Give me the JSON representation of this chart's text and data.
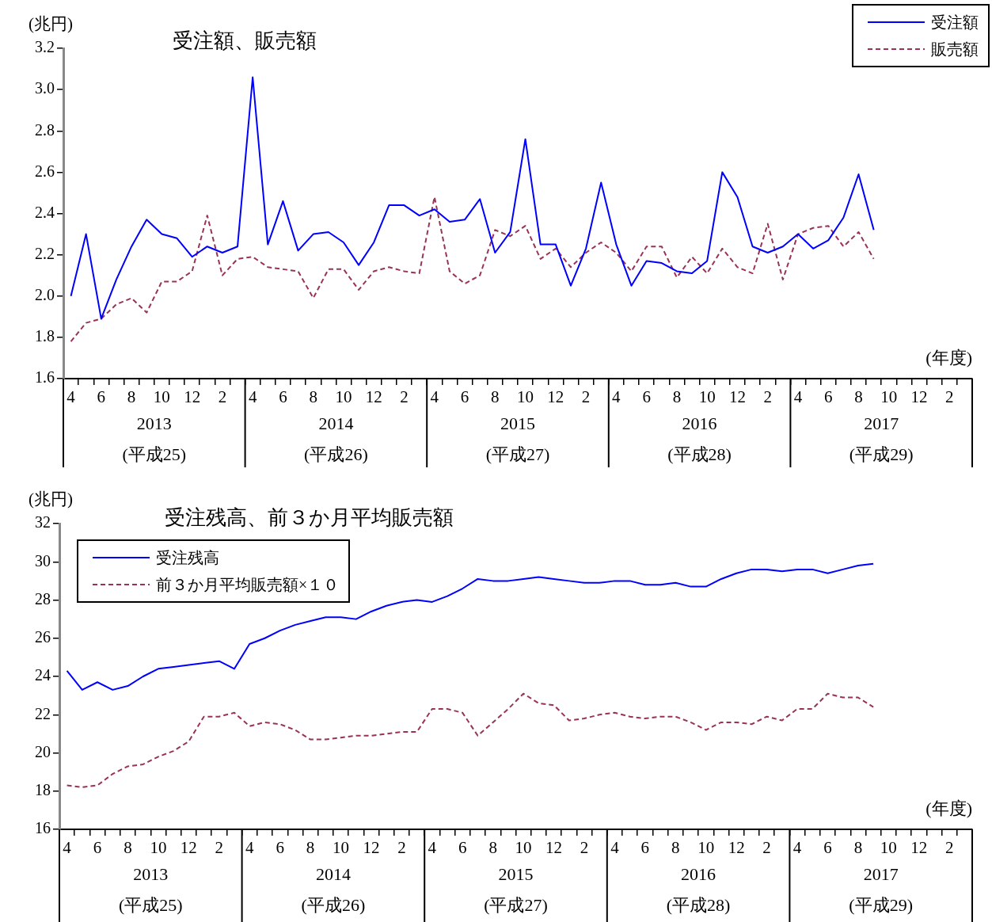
{
  "chart_data": [
    {
      "type": "line",
      "title": "受注額、販売額",
      "ylabel": "(兆円)",
      "legend": "top right",
      "ylim": [
        1.6,
        3.2
      ],
      "yticks": [
        1.6,
        1.8,
        {
          "value": 2,
          "label": "2.0"
        },
        2.2,
        2.4,
        2.6,
        2.8,
        {
          "value": 3,
          "label": "3.0"
        },
        3.2
      ],
      "categories": [
        "4",
        null,
        "6",
        null,
        "8",
        null,
        "10",
        null,
        "12",
        null,
        "2",
        null,
        "4",
        null,
        "6",
        null,
        "8",
        null,
        "10",
        null,
        "12",
        null,
        "2",
        null,
        "4",
        null,
        "6",
        null,
        "8",
        null,
        "10",
        null,
        "12",
        null,
        "2",
        null,
        "4",
        null,
        "6",
        null,
        "8",
        null,
        "10",
        null,
        "12",
        null,
        "2",
        null,
        "4",
        null,
        "6",
        null,
        "8",
        null,
        "10",
        null,
        "12",
        null,
        "2",
        null
      ],
      "annotations": [
        "(年度)",
        "2013",
        "(平成25)",
        "2014",
        "(平成26)",
        "2015",
        "(平成27)",
        "2016",
        "(平成28)",
        "2017",
        "(平成29)"
      ],
      "series": [
        {
          "name": "受注額",
          "color": "#0000ff",
          "line_style": "solid",
          "values": [
            2.0,
            2.3,
            1.89,
            2.08,
            2.24,
            2.37,
            2.3,
            2.28,
            2.19,
            2.24,
            2.21,
            2.24,
            3.06,
            2.25,
            2.46,
            2.22,
            2.3,
            2.31,
            2.26,
            2.15,
            2.26,
            2.44,
            2.44,
            2.39,
            2.42,
            2.36,
            2.37,
            2.47,
            2.21,
            2.31,
            2.76,
            2.25,
            2.25,
            2.05,
            2.23,
            2.55,
            2.25,
            2.05,
            2.17,
            2.16,
            2.12,
            2.11,
            2.17,
            2.6,
            2.48,
            2.24,
            2.21,
            2.24,
            2.3,
            2.23,
            2.27,
            2.38,
            2.59,
            2.32,
            null,
            null,
            null,
            null,
            null,
            null
          ]
        },
        {
          "name": "販売額",
          "color": "#993355",
          "line_style": "dashed",
          "values": [
            1.78,
            1.87,
            1.89,
            1.96,
            1.99,
            1.92,
            2.07,
            2.07,
            2.12,
            2.39,
            2.1,
            2.18,
            2.19,
            2.14,
            2.13,
            2.12,
            1.99,
            2.13,
            2.13,
            2.03,
            2.12,
            2.14,
            2.12,
            2.11,
            2.48,
            2.12,
            2.06,
            2.1,
            2.32,
            2.29,
            2.34,
            2.18,
            2.23,
            2.14,
            2.21,
            2.26,
            2.21,
            2.12,
            2.24,
            2.24,
            2.09,
            2.19,
            2.11,
            2.23,
            2.14,
            2.11,
            2.35,
            2.08,
            2.3,
            2.33,
            2.34,
            2.24,
            2.31,
            2.18,
            null,
            null,
            null,
            null,
            null,
            null
          ]
        }
      ]
    },
    {
      "type": "line",
      "title": "受注残高、前３か月平均販売額",
      "ylabel": "(兆円)",
      "legend": "top left",
      "ylim": [
        16,
        32
      ],
      "yticks": [
        16,
        18,
        20,
        22,
        24,
        26,
        28,
        30,
        32
      ],
      "categories": [
        "4",
        null,
        "6",
        null,
        "8",
        null,
        "10",
        null,
        "12",
        null,
        "2",
        null,
        "4",
        null,
        "6",
        null,
        "8",
        null,
        "10",
        null,
        "12",
        null,
        "2",
        null,
        "4",
        null,
        "6",
        null,
        "8",
        null,
        "10",
        null,
        "12",
        null,
        "2",
        null,
        "4",
        null,
        "6",
        null,
        "8",
        null,
        "10",
        null,
        "12",
        null,
        "2",
        null,
        "4",
        null,
        "6",
        null,
        "8",
        null,
        "10",
        null,
        "12",
        null,
        "2",
        null
      ],
      "annotations": [
        "(年度)",
        "2013",
        "(平成25)",
        "2014",
        "(平成26)",
        "2015",
        "(平成27)",
        "2016",
        "(平成28)",
        "2017",
        "(平成29)"
      ],
      "series": [
        {
          "name": "受注残高",
          "color": "#0000ff",
          "line_style": "solid",
          "values": [
            24.3,
            23.3,
            23.7,
            23.3,
            23.5,
            24.0,
            24.4,
            24.5,
            24.6,
            24.7,
            24.8,
            24.4,
            25.7,
            26.0,
            26.4,
            26.7,
            26.9,
            27.1,
            27.1,
            27.0,
            27.4,
            27.7,
            27.9,
            28.0,
            27.9,
            28.2,
            28.6,
            29.1,
            29.0,
            29.0,
            29.1,
            29.2,
            29.1,
            29.0,
            28.9,
            28.9,
            29.0,
            29.0,
            28.8,
            28.8,
            28.9,
            28.7,
            28.7,
            29.1,
            29.4,
            29.6,
            29.6,
            29.5,
            29.6,
            29.6,
            29.4,
            29.6,
            29.8,
            29.9,
            null,
            null,
            null,
            null,
            null,
            null
          ]
        },
        {
          "name": "前３か月平均販売額×１０",
          "color": "#993355",
          "line_style": "dashed",
          "values": [
            18.3,
            18.2,
            18.3,
            18.9,
            19.3,
            19.4,
            19.8,
            20.1,
            20.6,
            21.9,
            21.9,
            22.1,
            21.4,
            21.6,
            21.5,
            21.2,
            20.7,
            20.7,
            20.8,
            20.9,
            20.9,
            21.0,
            21.1,
            21.1,
            22.3,
            22.3,
            22.1,
            20.9,
            21.6,
            22.3,
            23.1,
            22.6,
            22.5,
            21.7,
            21.8,
            22.0,
            22.1,
            21.9,
            21.8,
            21.9,
            21.9,
            21.6,
            21.2,
            21.6,
            21.6,
            21.5,
            21.9,
            21.7,
            22.3,
            22.3,
            23.1,
            22.9,
            22.9,
            22.4,
            null,
            null,
            null,
            null,
            null,
            null
          ]
        }
      ]
    }
  ]
}
